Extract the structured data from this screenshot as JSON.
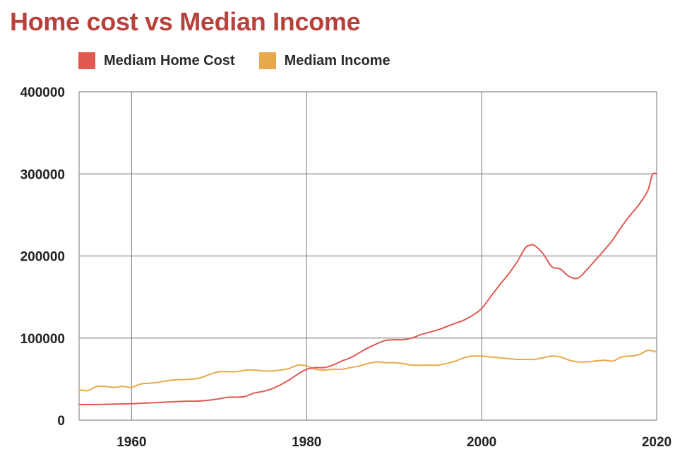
{
  "chart_data": {
    "type": "line",
    "title": "Home cost vs Median Income",
    "xlabel": "",
    "ylabel": "",
    "xlim": [
      1954,
      2020
    ],
    "ylim": [
      0,
      400000
    ],
    "x_ticks": [
      1960,
      1980,
      2000,
      2020
    ],
    "y_ticks": [
      0,
      100000,
      200000,
      300000,
      400000
    ],
    "grid": true,
    "legend_position": "top-left",
    "series": [
      {
        "name": "Mediam Home Cost",
        "color": "#e05a52",
        "x": [
          1954,
          1956,
          1958,
          1960,
          1962,
          1964,
          1966,
          1968,
          1970,
          1971,
          1972,
          1973,
          1974,
          1975,
          1976,
          1977,
          1978,
          1979,
          1980,
          1981,
          1982,
          1983,
          1984,
          1985,
          1986,
          1987,
          1988,
          1989,
          1990,
          1991,
          1992,
          1993,
          1994,
          1995,
          1996,
          1997,
          1998,
          1999,
          2000,
          2001,
          2002,
          2003,
          2004,
          2005,
          2005.5,
          2006,
          2007,
          2008,
          2009,
          2010,
          2011,
          2012,
          2013,
          2014,
          2015,
          2016,
          2017,
          2018,
          2019,
          2019.5,
          2020
        ],
        "y": [
          19000,
          19000,
          19500,
          20000,
          21000,
          22000,
          23000,
          23500,
          26000,
          28000,
          28000,
          29000,
          33000,
          35000,
          38000,
          43000,
          49000,
          56000,
          62000,
          64000,
          64000,
          67000,
          72000,
          76000,
          82000,
          88000,
          93000,
          97000,
          98000,
          98000,
          100000,
          104000,
          107000,
          110000,
          114000,
          118000,
          122000,
          128000,
          136000,
          150000,
          164000,
          177000,
          192000,
          210000,
          213000,
          213000,
          203000,
          187000,
          184000,
          175000,
          173000,
          183000,
          195000,
          207000,
          220000,
          236000,
          250000,
          263000,
          280000,
          299000,
          300000
        ]
      },
      {
        "name": "Mediam Income",
        "color": "#e8a94a",
        "x": [
          1954,
          1955,
          1956,
          1957,
          1958,
          1959,
          1960,
          1961,
          1962,
          1963,
          1964,
          1965,
          1966,
          1967,
          1968,
          1969,
          1970,
          1971,
          1972,
          1973,
          1974,
          1975,
          1976,
          1977,
          1978,
          1979,
          1980,
          1981,
          1982,
          1983,
          1984,
          1985,
          1986,
          1987,
          1988,
          1989,
          1990,
          1991,
          1992,
          1993,
          1994,
          1995,
          1996,
          1997,
          1998,
          1999,
          2000,
          2001,
          2002,
          2003,
          2004,
          2005,
          2006,
          2007,
          2008,
          2009,
          2010,
          2011,
          2012,
          2013,
          2014,
          2015,
          2016,
          2017,
          2018,
          2019,
          2020
        ],
        "y": [
          37000,
          36000,
          41000,
          41000,
          40000,
          41000,
          40000,
          44000,
          45000,
          46000,
          48000,
          49000,
          49500,
          50000,
          52000,
          56000,
          59000,
          59000,
          59000,
          61000,
          61000,
          60000,
          60000,
          61000,
          63000,
          67000,
          66000,
          62000,
          61000,
          62000,
          62000,
          64000,
          66000,
          69000,
          71000,
          70000,
          70000,
          69000,
          67000,
          67000,
          67000,
          67000,
          69000,
          72000,
          76000,
          78000,
          78000,
          77000,
          76000,
          75000,
          74000,
          74000,
          74000,
          76000,
          78000,
          77000,
          73000,
          71000,
          71000,
          72000,
          73000,
          72000,
          77000,
          78000,
          80000,
          85000,
          83000
        ]
      }
    ]
  }
}
